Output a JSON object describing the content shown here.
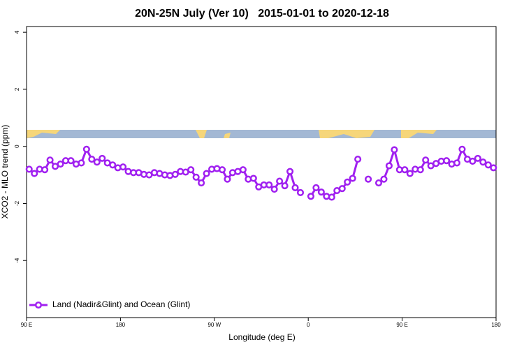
{
  "chart_data": {
    "type": "line",
    "title": "20N-25N July (Ver 10)   2015-01-01 to 2020-12-18",
    "xlabel": "Longitude (deg E)",
    "ylabel": "XCO2 - MLO trend (ppm)",
    "x": [
      92.5,
      97.5,
      102.5,
      107.5,
      112.5,
      117.5,
      122.5,
      127.5,
      132.5,
      137.5,
      142.5,
      147.5,
      152.5,
      157.5,
      162.5,
      167.5,
      172.5,
      177.5,
      182.5,
      187.5,
      192.5,
      197.5,
      202.5,
      207.5,
      212.5,
      217.5,
      222.5,
      227.5,
      232.5,
      237.5,
      242.5,
      247.5,
      252.5,
      257.5,
      262.5,
      267.5,
      272.5,
      277.5,
      282.5,
      287.5,
      292.5,
      297.5,
      302.5,
      307.5,
      312.5,
      317.5,
      322.5,
      327.5,
      332.5,
      337.5,
      342.5,
      347.5,
      352.5,
      357.5,
      362.5,
      367.5,
      372.5,
      377.5,
      382.5,
      387.5,
      392.5,
      397.5,
      402.5,
      407.5,
      412.5,
      417.5,
      422.5,
      427.5,
      432.5,
      437.5,
      442.5,
      447.5,
      452.5,
      457.5,
      462.5,
      467.5,
      472.5,
      477.5,
      482.5,
      487.5,
      492.5,
      497.5,
      502.5,
      507.5,
      512.5,
      517.5,
      522.5,
      527.5,
      532.5,
      537.5
    ],
    "series": [
      {
        "name": "Land (Nadir&Glint) and Ocean (Glint)",
        "color": "#a020f0",
        "values": [
          -0.8,
          -0.95,
          -0.8,
          -0.82,
          -0.48,
          -0.7,
          -0.62,
          -0.5,
          -0.5,
          -0.62,
          -0.58,
          -0.1,
          -0.45,
          -0.55,
          -0.42,
          -0.58,
          -0.65,
          -0.75,
          -0.72,
          -0.88,
          -0.92,
          -0.92,
          -0.98,
          -1.0,
          -0.92,
          -0.95,
          -1.0,
          -1.02,
          -0.98,
          -0.88,
          -0.9,
          -0.82,
          -1.08,
          -1.28,
          -0.95,
          -0.8,
          -0.78,
          -0.82,
          -1.15,
          -0.92,
          -0.88,
          -0.82,
          -1.15,
          -1.12,
          -1.42,
          -1.35,
          -1.35,
          -1.5,
          -1.22,
          -1.38,
          -0.88,
          -1.45,
          -1.62,
          null,
          -1.75,
          -1.45,
          -1.6,
          -1.75,
          -1.78,
          -1.55,
          -1.48,
          -1.25,
          -1.12,
          -0.45,
          null,
          -1.15,
          null,
          -1.28,
          -1.15,
          -0.68,
          -0.12,
          -0.82,
          -0.82,
          -0.95,
          -0.8,
          -0.82,
          -0.48,
          -0.68,
          -0.6,
          -0.52,
          -0.5,
          -0.62,
          -0.58,
          -0.1,
          -0.45,
          -0.52,
          -0.42,
          -0.55,
          -0.65,
          -0.75
        ]
      }
    ],
    "xlim": [
      90,
      540
    ],
    "xticks": [
      {
        "value": 90,
        "label": "90 E"
      },
      180,
      {
        "value": 270,
        "label": "90 W"
      },
      {
        "value": 360,
        "label": "0"
      },
      {
        "value": 450,
        "label": "90 E"
      },
      {
        "value": 540,
        "label": "180"
      }
    ],
    "ylim": [
      -6,
      4.2
    ],
    "yticks": [
      -4,
      -2,
      0,
      2,
      4
    ],
    "legend": "bottom-left"
  }
}
